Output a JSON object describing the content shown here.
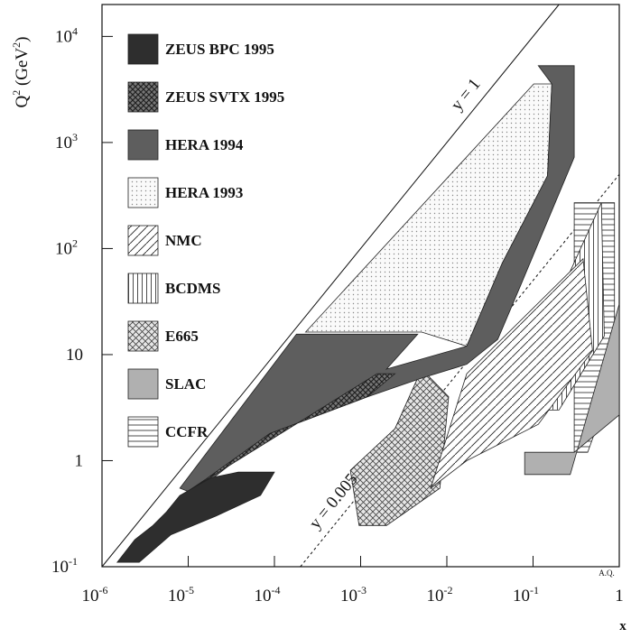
{
  "chart_data": {
    "type": "region",
    "x_label": "x",
    "y_label": "Q^2 (GeV^2)",
    "log_x": true,
    "log_y": true,
    "xlim": [
      1e-06,
      1
    ],
    "ylim": [
      0.1,
      20000
    ],
    "xticks": [
      {
        "value": 1e-06,
        "label": "10^-6"
      },
      {
        "value": 1e-05,
        "label": "10^-5"
      },
      {
        "value": 0.0001,
        "label": "10^-4"
      },
      {
        "value": 0.001,
        "label": "10^-3"
      },
      {
        "value": 0.01,
        "label": "10^-2"
      },
      {
        "value": 0.1,
        "label": "10^-1"
      },
      1
    ],
    "yticks": [
      {
        "value": 0.1,
        "label": "10^-1"
      },
      1,
      10,
      {
        "value": 100,
        "label": "10^2"
      },
      {
        "value": 1000,
        "label": "10^3"
      },
      {
        "value": 10000,
        "label": "10^4"
      }
    ],
    "series": [
      {
        "name": "ZEUS BPC 1995",
        "color": "#2e2e2e",
        "pattern": "solid",
        "x": [
          1.5e-06,
          2.4e-06,
          3.9e-06,
          5.6e-06,
          8e-06,
          1.85e-05,
          3.8e-05,
          0.0001,
          6.9e-05,
          2.1e-05,
          6.3e-06,
          2.7e-06
        ],
        "values": [
          0.11,
          0.18,
          0.245,
          0.33,
          0.47,
          0.69,
          0.78,
          0.78,
          0.47,
          0.3,
          0.2,
          0.11
        ]
      },
      {
        "name": "ZEUS SVTX 1995",
        "color": "#6a6a6a",
        "pattern": "checker",
        "x": [
          9e-06,
          0.00155,
          0.0025,
          0.0012,
          8.8e-05,
          1.6e-05
        ],
        "values": [
          0.49,
          6.6,
          6.6,
          4,
          1.8,
          0.67
        ]
      },
      {
        "name": "HERA 1994",
        "color": "#5e5e5e",
        "pattern": "solid",
        "x": [
          8e-06,
          0.00018,
          0.0046,
          0.002,
          0.017,
          0.044,
          0.147,
          0.165,
          0.115,
          0.3,
          0.3,
          0.071,
          0.039,
          0.017,
          0.0051,
          0.0012,
          8.8e-05,
          1.15e-05
        ],
        "values": [
          0.55,
          15.6,
          15.6,
          7.3,
          12,
          73,
          485,
          3570,
          5300,
          5300,
          725,
          44,
          13.9,
          8.1,
          6,
          4,
          1.8,
          0.49
        ]
      },
      {
        "name": "HERA 1993",
        "color": "#9a9a9a",
        "pattern": "dots",
        "x": [
          0.00023,
          0.102,
          0.165,
          0.147,
          0.044,
          0.017,
          0.0051
        ],
        "values": [
          16.3,
          3570,
          3570,
          485,
          73,
          12,
          16.3
        ]
      },
      {
        "name": "NMC",
        "color": "#222222",
        "pattern": "diagonal",
        "x": [
          0.0065,
          0.017,
          0.38,
          0.49,
          0.115,
          0.017
        ],
        "values": [
          0.55,
          6.6,
          80,
          10.9,
          2.2,
          1
        ]
      },
      {
        "name": "BCDMS",
        "color": "#222222",
        "pattern": "vertical",
        "x": [
          0.05,
          0.62,
          0.67,
          0.2
        ],
        "values": [
          3,
          270,
          15,
          3
        ]
      },
      {
        "name": "E665",
        "color": "#cfcfcf",
        "pattern": "cross",
        "x": [
          0.00076,
          0.0025,
          0.0051,
          0.0105,
          0.0083,
          0.002,
          0.00096
        ],
        "values": [
          0.81,
          2,
          7.3,
          4,
          0.55,
          0.245,
          0.245
        ]
      },
      {
        "name": "SLAC",
        "color": "#b0b0b0",
        "pattern": "solid",
        "x": [
          0.08,
          0.27,
          1,
          1,
          0.3,
          0.08
        ],
        "values": [
          0.74,
          0.74,
          30,
          2.7,
          1.2,
          1.2
        ]
      },
      {
        "name": "CCFR",
        "color": "#222222",
        "pattern": "horizontal",
        "x": [
          0.3,
          0.88,
          0.88,
          0.43,
          0.3
        ],
        "values": [
          270,
          270,
          6,
          1.2,
          1.2
        ]
      }
    ],
    "lines": [
      {
        "label": "y = 1",
        "dash": false,
        "x": [
          1e-06,
          0.2
        ],
        "values": [
          0.1,
          20000
        ]
      },
      {
        "label": "y = 0.005",
        "dash": true,
        "x": [
          0.0002,
          1
        ],
        "values": [
          0.1,
          500
        ]
      }
    ],
    "annotation": "A.Q."
  }
}
